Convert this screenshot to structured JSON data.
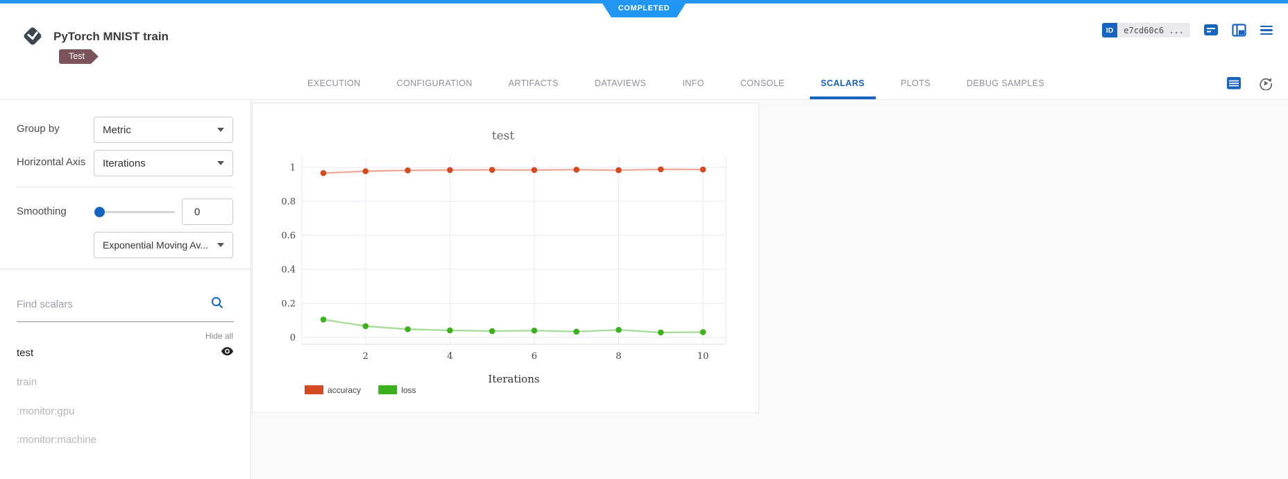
{
  "status": {
    "label": "COMPLETED"
  },
  "header": {
    "title": "PyTorch MNIST train",
    "tag": "Test",
    "id_badge": "ID",
    "id_value": "e7cd60c6 ..."
  },
  "tabs": {
    "items": [
      "EXECUTION",
      "CONFIGURATION",
      "ARTIFACTS",
      "DATAVIEWS",
      "INFO",
      "CONSOLE",
      "SCALARS",
      "PLOTS",
      "DEBUG SAMPLES"
    ],
    "active": "SCALARS"
  },
  "sidebar": {
    "group_by_label": "Group by",
    "group_by_value": "Metric",
    "horizontal_axis_label": "Horizontal Axis",
    "horizontal_axis_value": "Iterations",
    "smoothing_label": "Smoothing",
    "smoothing_value": "0",
    "smoothing_method": "Exponential Moving Av...",
    "find_placeholder": "Find scalars",
    "hide_all": "Hide all",
    "metrics": [
      {
        "label": "test",
        "visible": true
      },
      {
        "label": "train",
        "visible": false
      },
      {
        "label": ":monitor:gpu",
        "visible": false
      },
      {
        "label": ":monitor:machine",
        "visible": false
      }
    ]
  },
  "chart_data": {
    "type": "line",
    "title": "test",
    "xlabel": "Iterations",
    "x": [
      1,
      2,
      3,
      4,
      5,
      6,
      7,
      8,
      9,
      10
    ],
    "series": [
      {
        "name": "accuracy",
        "color": "#d54a21",
        "values": [
          0.966,
          0.977,
          0.982,
          0.984,
          0.985,
          0.984,
          0.986,
          0.983,
          0.988,
          0.987
        ]
      },
      {
        "name": "loss",
        "color": "#3cb11d",
        "values": [
          0.105,
          0.066,
          0.048,
          0.041,
          0.037,
          0.04,
          0.034,
          0.044,
          0.029,
          0.031
        ]
      }
    ],
    "ylim": [
      0,
      1
    ],
    "yticks": [
      0,
      0.2,
      0.4,
      0.6,
      0.8,
      1
    ],
    "xticks": [
      2,
      4,
      6,
      8,
      10
    ],
    "grid": true,
    "legend_position": "bottom"
  }
}
